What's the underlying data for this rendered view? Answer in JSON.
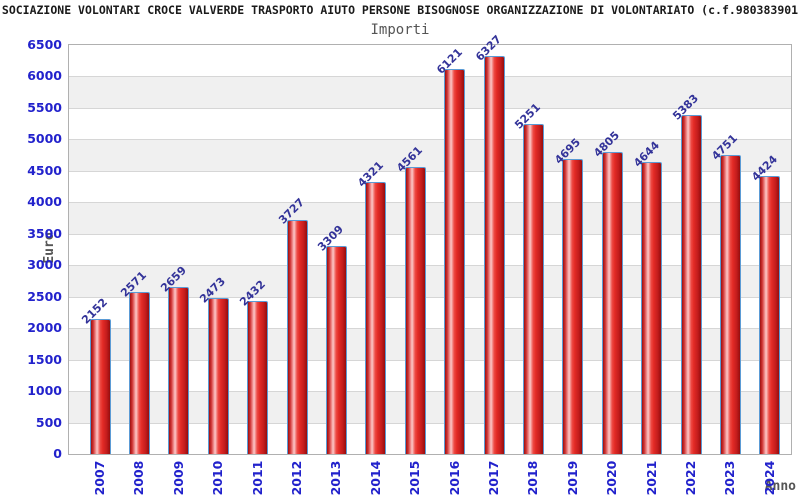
{
  "header": {
    "title": "SOCIAZIONE VOLONTARI CROCE VALVERDE TRASPORTO AIUTO PERSONE BISOGNOSE ORGANIZZAZIONE DI VOLONTARIATO (c.f.980383901",
    "subtitle": "Importi"
  },
  "chart_data": {
    "type": "bar",
    "title": "Importi",
    "xlabel": "Anno",
    "ylabel": "Euro",
    "categories": [
      "2007",
      "2008",
      "2009",
      "2010",
      "2011",
      "2012",
      "2013",
      "2014",
      "2015",
      "2016",
      "2017",
      "2018",
      "2019",
      "2020",
      "2021",
      "2022",
      "2023",
      "2024"
    ],
    "values": [
      2152,
      2571,
      2659,
      2473,
      2432,
      3727,
      3309,
      4321,
      4561,
      6121,
      6327,
      5251,
      4695,
      4805,
      4644,
      5383,
      4751,
      4424
    ],
    "ylim": [
      0,
      6500
    ],
    "ytick_step": 500,
    "grid": "horizontal",
    "legend": "none",
    "colors": {
      "bar_fill": "#e22a25",
      "bar_border": "#5b9bd5",
      "tick_label": "#2222cc",
      "value_label": "#333399",
      "band_gray": "#f0f0f0",
      "axis_title": "#555555"
    }
  }
}
